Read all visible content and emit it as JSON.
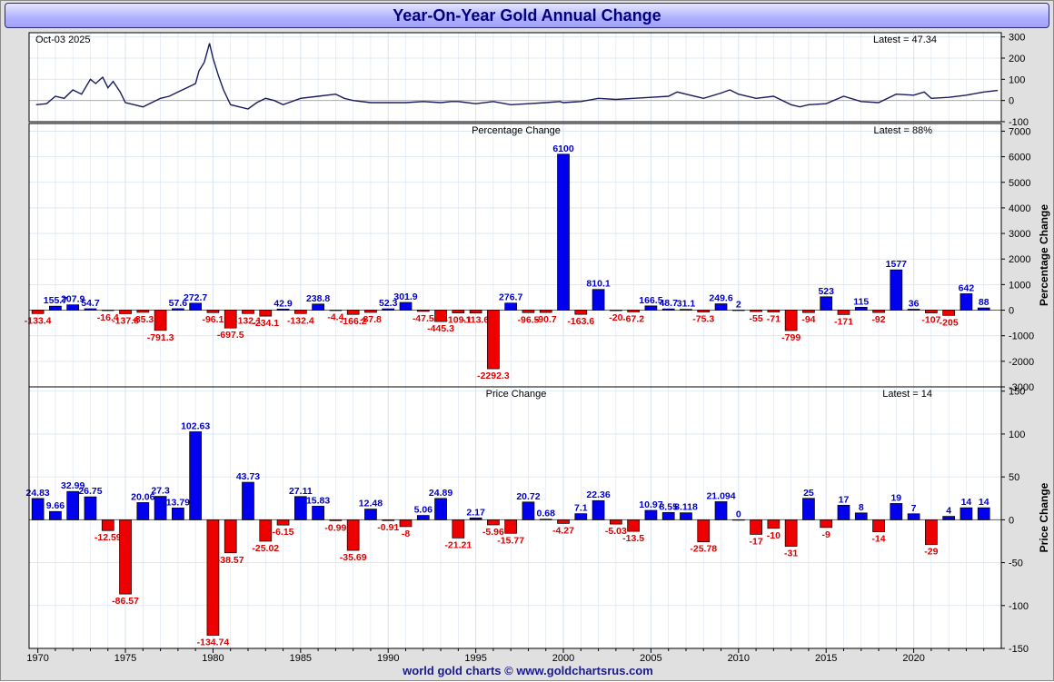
{
  "title": "Year-On-Year Gold Annual Change",
  "footer": "world gold charts © www.goldchartsrus.com",
  "colors": {
    "positive": "#0000ee",
    "negative": "#ee0000",
    "line": "#1a1a5e",
    "grid": "#d8e4f0",
    "pos_label": "#0000cc",
    "neg_label": "#dd0000"
  },
  "chart_data": [
    {
      "type": "line",
      "date_label": "Oct-03  2025",
      "latest_label": "Latest = 47.34",
      "ylim": [
        -100,
        320
      ],
      "yticks": [
        -100,
        0,
        100,
        200,
        300
      ],
      "x": [
        1969.9,
        1970.5,
        1971.0,
        1971.5,
        1972.0,
        1972.5,
        1973.0,
        1973.3,
        1973.7,
        1974.0,
        1974.3,
        1974.7,
        1975.0,
        1975.5,
        1976.0,
        1976.5,
        1977.0,
        1977.5,
        1978.0,
        1978.5,
        1979.0,
        1979.2,
        1979.5,
        1979.8,
        1980.0,
        1980.3,
        1980.6,
        1981.0,
        1981.5,
        1982.0,
        1982.5,
        1983.0,
        1983.5,
        1984.0,
        1985.0,
        1986.0,
        1987.0,
        1987.5,
        1988.0,
        1989.0,
        1990.0,
        1991.0,
        1992.0,
        1993.0,
        1993.6,
        1994.0,
        1995.0,
        1996.0,
        1997.0,
        1998.0,
        1999.0,
        1999.8,
        2000.0,
        2001.0,
        2002.0,
        2003.0,
        2004.0,
        2005.0,
        2006.0,
        2006.5,
        2007.0,
        2008.0,
        2009.0,
        2009.5,
        2010.0,
        2011.0,
        2012.0,
        2013.0,
        2013.5,
        2014.0,
        2015.0,
        2016.0,
        2017.0,
        2018.0,
        2019.0,
        2020.0,
        2020.6,
        2021.0,
        2022.0,
        2023.0,
        2024.0,
        2024.8
      ],
      "y": [
        -20,
        -15,
        20,
        10,
        50,
        30,
        100,
        80,
        110,
        60,
        90,
        40,
        -10,
        -20,
        -30,
        -10,
        10,
        20,
        40,
        60,
        80,
        140,
        180,
        270,
        200,
        120,
        50,
        -20,
        -30,
        -40,
        -10,
        10,
        0,
        -20,
        10,
        20,
        30,
        10,
        0,
        -10,
        -10,
        -10,
        -5,
        -10,
        -5,
        -5,
        -15,
        -5,
        -20,
        -15,
        -10,
        -5,
        -10,
        -5,
        10,
        5,
        10,
        15,
        20,
        40,
        30,
        10,
        35,
        50,
        30,
        10,
        20,
        -20,
        -30,
        -20,
        -15,
        20,
        -5,
        -10,
        30,
        25,
        40,
        10,
        15,
        25,
        40,
        47.34
      ]
    },
    {
      "type": "bar",
      "panel_label": "Percentage Change",
      "latest_label": "Latest = 88%",
      "ylabel": "Percentage Change",
      "ylim": [
        -3000,
        7300
      ],
      "yticks": [
        -3000,
        -2000,
        -1000,
        0,
        1000,
        2000,
        3000,
        4000,
        5000,
        6000,
        7000
      ],
      "years": [
        1970,
        1971,
        1972,
        1973,
        1974,
        1975,
        1976,
        1977,
        1978,
        1979,
        1980,
        1981,
        1982,
        1983,
        1984,
        1985,
        1986,
        1987,
        1988,
        1989,
        1990,
        1991,
        1992,
        1993,
        1994,
        1995,
        1996,
        1997,
        1998,
        1999,
        2000,
        2001,
        2002,
        2003,
        2004,
        2005,
        2006,
        2007,
        2008,
        2009,
        2010,
        2011,
        2012,
        2013,
        2014,
        2015,
        2016,
        2017,
        2018,
        2019,
        2020,
        2021,
        2022,
        2023,
        2024
      ],
      "values": [
        -133.4,
        155.7,
        207.9,
        54.7,
        -16.4,
        -137.8,
        -85.3,
        -791.3,
        57.6,
        272.7,
        -96.1,
        -697.5,
        -132.1,
        -234.1,
        42.9,
        -132.4,
        238.8,
        -4.4,
        -166.2,
        -87.8,
        52.3,
        301.9,
        -47.5,
        -445.3,
        -109.1,
        -113.6,
        -2292.3,
        276.7,
        -96.5,
        -90.7,
        6100,
        -163.6,
        810.1,
        -20,
        -67.2,
        166.5,
        48.7,
        31.1,
        -75.3,
        249.6,
        2,
        -55,
        -71,
        -799,
        -94,
        523,
        -171,
        115,
        -92,
        1577,
        36,
        -107,
        -205,
        642,
        88
      ],
      "labels": [
        "-133.4",
        "155.7",
        "207.9",
        "54.7",
        "-16.4",
        "-137.8",
        "-85.3",
        "-791.3",
        "57.6",
        "272.7",
        "-96.1",
        "-697.5",
        "-132.1",
        "-234.1",
        "42.9",
        "-132.4",
        "238.8",
        "-4.4",
        "-166.2",
        "-87.8",
        "52.3",
        "301.9",
        "-47.5",
        "-445.3",
        "-109.1",
        "-113.6",
        "-2292.3",
        "276.7",
        "-96.5",
        "-90.7",
        "6100",
        "-163.6",
        "810.1",
        "-20",
        "-67.2",
        "166.5",
        "48.7",
        "31.1",
        "-75.3",
        "249.6",
        "2",
        "-55",
        "-71",
        "-799",
        "-94",
        "523",
        "-171",
        "115",
        "-92",
        "1577",
        "36",
        "-107",
        "-205",
        "642",
        "88"
      ]
    },
    {
      "type": "bar",
      "panel_label": "Price Change",
      "latest_label": "Latest = 14",
      "ylabel": "Price Change",
      "ylim": [
        -150,
        155
      ],
      "yticks": [
        -150,
        -100,
        -50,
        0,
        50,
        100,
        150
      ],
      "years": [
        1970,
        1971,
        1972,
        1973,
        1974,
        1975,
        1976,
        1977,
        1978,
        1979,
        1980,
        1981,
        1982,
        1983,
        1984,
        1985,
        1986,
        1987,
        1988,
        1989,
        1990,
        1991,
        1992,
        1993,
        1994,
        1995,
        1996,
        1997,
        1998,
        1999,
        2000,
        2001,
        2002,
        2003,
        2004,
        2005,
        2006,
        2007,
        2008,
        2009,
        2010,
        2011,
        2012,
        2013,
        2014,
        2015,
        2016,
        2017,
        2018,
        2019,
        2020,
        2021,
        2022,
        2023,
        2024
      ],
      "values": [
        24.83,
        9.66,
        32.99,
        26.75,
        -12.59,
        -86.57,
        20.06,
        27.3,
        13.79,
        102.63,
        -134.74,
        -38.57,
        43.73,
        -25.02,
        -6.15,
        27.11,
        15.83,
        -0.99,
        -35.69,
        12.48,
        -0.91,
        -8,
        5.06,
        24.89,
        -21.21,
        2.17,
        -5.96,
        -15.77,
        20.72,
        0.68,
        -4.27,
        7.1,
        22.36,
        -5.03,
        -13.5,
        10.97,
        8.55,
        8.118,
        -25.78,
        21.094,
        0,
        -17,
        -10,
        -31,
        25,
        -9,
        17,
        8,
        -14,
        19,
        7,
        -29,
        4,
        14,
        14
      ],
      "labels": [
        "24.83",
        "9.66",
        "32.99",
        "26.75",
        "-12.59",
        "-86.57",
        "20.06",
        "27.3",
        "13.79",
        "102.63",
        "-134.74",
        "-38.57",
        "43.73",
        "-25.02",
        "-6.15",
        "27.11",
        "15.83",
        "-0.99",
        "-35.69",
        "12.48",
        "-0.91",
        "-8",
        "5.06",
        "24.89",
        "-21.21",
        "2.17",
        "-5.96",
        "-15.77",
        "20.72",
        "0.68",
        "-4.27",
        "7.1",
        "22.36",
        "-5.03",
        "-13.5",
        "10.97",
        "8.55",
        "8.118",
        "-25.78",
        "21.094",
        "0",
        "-17",
        "-10",
        "-31",
        "25",
        "-9",
        "17",
        "8",
        "-14",
        "19",
        "7",
        "-29",
        "4",
        "14",
        "14"
      ]
    }
  ],
  "x_axis": {
    "tick_years": [
      1970,
      1975,
      1980,
      1985,
      1990,
      1995,
      2000,
      2005,
      2010,
      2015,
      2020
    ]
  }
}
